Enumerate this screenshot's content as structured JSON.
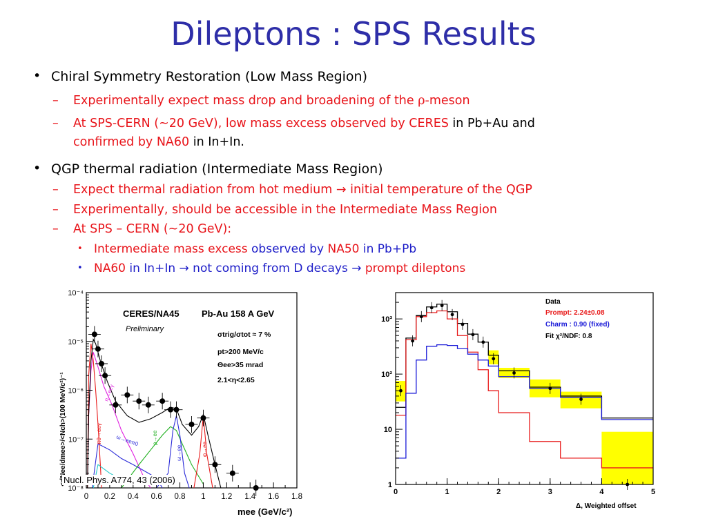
{
  "slide": {
    "title": "Dileptons : SPS Results",
    "bullet1": {
      "text": "Chiral Symmetry Restoration (Low Mass Region)",
      "sub1": {
        "red_a": "Experimentally expect mass drop and broadening of the ",
        "rho": "ρ",
        "red_b": "-meson"
      },
      "sub2": {
        "red_a": "At SPS-CERN (~20 GeV), low mass excess observed by CERES",
        "blk_a": " in Pb+Au and",
        "red_b": "confirmed by NA60",
        "blk_b": " in In+In."
      }
    },
    "bullet2": {
      "text": "QGP thermal radiation (Intermediate Mass Region)",
      "sub1": {
        "red_a": "Expect thermal radiation from hot medium ",
        "arrow": "→",
        "red_b": " initial temperature of the QGP"
      },
      "sub2": {
        "red": "Experimentally, should be accessible in the Intermediate Mass Region"
      },
      "sub3": {
        "red": "At SPS – CERN (~20 GeV):"
      },
      "subsub1": {
        "red_a": "Intermediate mass excess ",
        "blu_a": "observed by ",
        "red_b": "NA50",
        "blu_b": " in Pb+Pb"
      },
      "subsub2": {
        "red_a": " NA60",
        "blu_a": " in In+In ",
        "arrow1": "→",
        "blu_b": " not coming from D decays ",
        "arrow2": "→",
        "red_b": " prompt dileptons"
      }
    },
    "bullet_marker": "•",
    "dash_marker": "–"
  },
  "left_plot": {
    "experiment": "CERES/NA45",
    "system": "Pb-Au 158 A GeV",
    "status": "Preliminary",
    "cut1": "σtrig/σtot ≈ 7 %",
    "cut2": "pt>200 MeV/c",
    "cut3": "Θee>35 mrad",
    "cut4": "2.1<η<2.65",
    "citation": "Nucl. Phys. A774, 43 (2006)",
    "xlabel": "mee (GeV/c²)",
    "ylabel": "<dNee/dmee>/<Nch>(100 MeV/c²)⁻¹",
    "curve_labels": [
      "η→eeγ",
      "π0→eeγ",
      "ω→eeπ0",
      "ρ→ee",
      "ω→ee",
      "φ→ee"
    ],
    "colors": {
      "sum": "#000000",
      "eta": "#e020e0",
      "pi0": "#e81a1a",
      "omega_dalitz": "#2a2ad8",
      "rho": "#20b020",
      "omega": "#2a2ad8",
      "phi": "#e81a1a",
      "cyan": "#20c8c8"
    }
  },
  "right_plot": {
    "legend_data": "Data",
    "legend_prompt": "Prompt: 2.24±0.08",
    "legend_charm": "Charm : 0.90 (fixed)",
    "legend_fit": "Fit  χ²/NDF:  0.8",
    "xlabel": "Δ, Weighted offset",
    "colors": {
      "data": "#000000",
      "prompt": "#e81a1a",
      "charm": "#1a1ad8",
      "band": "#ffff00"
    }
  },
  "chart_data": [
    {
      "type": "scatter",
      "title": "",
      "xlabel": "mee (GeV/c²)",
      "ylabel": "<dNee/dmee>/<Nch>(100 MeV/c²)⁻¹",
      "xlim": [
        0,
        1.8
      ],
      "ylim": [
        1e-08,
        0.0001
      ],
      "yscale": "log",
      "x_ticks": [
        "0",
        "0.2",
        "0.4",
        "0.6",
        "0.8",
        "1",
        "1.2",
        "1.4",
        "1.6",
        "1.8"
      ],
      "y_ticks": [
        "10⁻⁸",
        "10⁻⁷",
        "10⁻⁶",
        "10⁻⁵",
        "10⁻⁴"
      ],
      "series": [
        {
          "points": [
            {
              "x": 0.07,
              "y": 1.4e-05
            },
            {
              "x": 0.1,
              "y": 7e-06
            },
            {
              "x": 0.13,
              "y": 3.5e-06
            },
            {
              "x": 0.16,
              "y": 2e-06
            },
            {
              "x": 0.25,
              "y": 5e-07
            },
            {
              "x": 0.35,
              "y": 8e-07
            },
            {
              "x": 0.45,
              "y": 6e-07
            },
            {
              "x": 0.53,
              "y": 5e-07
            },
            {
              "x": 0.65,
              "y": 6e-07
            },
            {
              "x": 0.72,
              "y": 4e-07
            },
            {
              "x": 0.77,
              "y": 4e-07
            },
            {
              "x": 0.9,
              "y": 2e-07
            },
            {
              "x": 1.0,
              "y": 2.7e-07
            },
            {
              "x": 1.1,
              "y": 3e-08
            },
            {
              "x": 1.25,
              "y": 2e-08
            },
            {
              "x": 1.45,
              "y": 1e-08
            }
          ]
        }
      ]
    },
    {
      "type": "line",
      "title": "",
      "xlabel": "Δ, Weighted offset",
      "ylabel": "",
      "xlim": [
        0,
        5
      ],
      "ylim": [
        1,
        3000
      ],
      "yscale": "log",
      "x_ticks": [
        "0",
        "1",
        "2",
        "3",
        "4",
        "5"
      ],
      "y_ticks": [
        "1",
        "10",
        "10²",
        "10³"
      ],
      "data_points": [
        {
          "x": 0.1,
          "y": 50
        },
        {
          "x": 0.33,
          "y": 400
        },
        {
          "x": 0.5,
          "y": 1100
        },
        {
          "x": 0.7,
          "y": 1600
        },
        {
          "x": 0.9,
          "y": 1750
        },
        {
          "x": 1.1,
          "y": 1200
        },
        {
          "x": 1.3,
          "y": 800
        },
        {
          "x": 1.5,
          "y": 520
        },
        {
          "x": 1.7,
          "y": 380
        },
        {
          "x": 1.9,
          "y": 190
        },
        {
          "x": 2.3,
          "y": 105
        },
        {
          "x": 3.0,
          "y": 55
        },
        {
          "x": 3.6,
          "y": 35
        },
        {
          "x": 4.5,
          "y": 1
        }
      ],
      "series": [
        {
          "name": "Data",
          "bin_edges": [
            0,
            0.2,
            0.4,
            0.6,
            0.8,
            1.0,
            1.2,
            1.4,
            1.6,
            1.8,
            2.0,
            2.6,
            3.2,
            4.0,
            5.0
          ],
          "values": [
            25,
            450,
            1150,
            1650,
            1850,
            1350,
            830,
            530,
            380,
            220,
            115,
            58,
            40,
            16
          ]
        },
        {
          "name": "Prompt: 2.24±0.08",
          "bin_edges": [
            0,
            0.2,
            0.4,
            0.6,
            0.8,
            1.0,
            1.2,
            1.4,
            1.6,
            1.8,
            2.0,
            2.6,
            3.2,
            4.0,
            5.0
          ],
          "values": [
            18,
            420,
            1100,
            1300,
            1400,
            1000,
            500,
            250,
            120,
            50,
            20,
            6,
            3,
            2
          ]
        },
        {
          "name": "Charm : 0.90 (fixed)",
          "bin_edges": [
            0,
            0.2,
            0.4,
            0.6,
            0.8,
            1.0,
            1.2,
            1.4,
            1.6,
            1.8,
            2.0,
            2.6,
            3.2,
            4.0,
            5.0
          ],
          "values": [
            3,
            45,
            180,
            320,
            340,
            330,
            290,
            230,
            180,
            140,
            90,
            55,
            38,
            15
          ]
        }
      ],
      "error_bands": [
        {
          "x": [
            0,
            0.2
          ],
          "y": [
            32,
            75
          ]
        },
        {
          "x": [
            1.8,
            2.0
          ],
          "y": [
            150,
            270
          ]
        },
        {
          "x": [
            2.0,
            2.6
          ],
          "y": [
            85,
            130
          ]
        },
        {
          "x": [
            2.6,
            3.2
          ],
          "y": [
            38,
            80
          ]
        },
        {
          "x": [
            3.2,
            4.0
          ],
          "y": [
            24,
            48
          ]
        },
        {
          "x": [
            4.0,
            5.0
          ],
          "y": [
            1,
            9
          ]
        }
      ]
    }
  ]
}
